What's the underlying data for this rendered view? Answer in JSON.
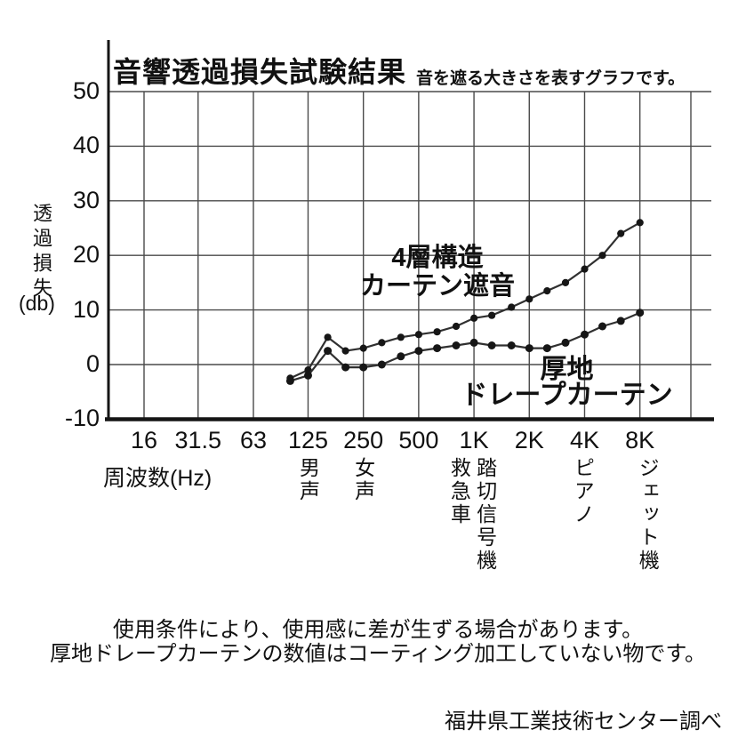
{
  "chart": {
    "title": "音響透過損失試験結果",
    "subtitle": "音を遮る大きさを表すグラフです。",
    "y_axis": {
      "label_vertical": "透過損失",
      "label_unit": "(db)"
    },
    "x_axis": {
      "label": "周波数(Hz)"
    },
    "series_labels": {
      "four_layer": [
        "4層構造",
        "カーテン遮音"
      ],
      "drape": [
        "厚地",
        "ドレープカーテン"
      ]
    },
    "sound_annotations": [
      {
        "label": "男声",
        "freq_hz": 125
      },
      {
        "label": "女声",
        "freq_hz": 250
      },
      {
        "label": "救急車",
        "freq_hz": 830
      },
      {
        "label": "踏切信号機",
        "freq_hz": 1150
      },
      {
        "label": "ピアノ",
        "freq_hz": 3900
      },
      {
        "label": "ジェット機",
        "freq_hz": 8800
      }
    ],
    "notes": [
      "使用条件により、使用感に差が生ずる場合があります。",
      "厚地ドレープカーテンの数値はコーティング加工していない物です。"
    ],
    "attribution": "福井県工業技術センター調べ",
    "colors": {
      "ink": "#151515",
      "grid": "#4a4a4a",
      "line": "#303030",
      "marker": "#161616"
    }
  },
  "chart_data": {
    "type": "line",
    "x_scale": "log2 frequency (Hz), one-third octave bands",
    "xlabel": "周波数(Hz)",
    "ylabel": "透過損失(db)",
    "ylim": [
      -10,
      50
    ],
    "grid": true,
    "xticks": [
      "16",
      "31.5",
      "63",
      "125",
      "250",
      "500",
      "1K",
      "2K",
      "4K",
      "8K"
    ],
    "xtick_freqs": [
      16,
      31.5,
      63,
      125,
      250,
      500,
      1000,
      2000,
      4000,
      8000
    ],
    "yticks": [
      50,
      40,
      30,
      20,
      10,
      0,
      -10
    ],
    "categories": [
      100,
      125,
      160,
      200,
      250,
      315,
      400,
      500,
      630,
      800,
      1000,
      1250,
      1600,
      2000,
      2500,
      3150,
      4000,
      5000,
      6300,
      8000
    ],
    "series": [
      {
        "name": "4層構造カーテン遮音",
        "values": [
          -2.5,
          -1,
          5,
          2.5,
          3,
          4,
          5,
          5.5,
          6,
          7,
          8.5,
          9,
          10.5,
          12,
          13.5,
          15,
          17.5,
          20,
          24,
          26
        ]
      },
      {
        "name": "厚地ドレープカーテン",
        "values": [
          -3,
          -2,
          2.5,
          -0.5,
          -0.5,
          0,
          1.5,
          2.5,
          3,
          3.5,
          4,
          3.5,
          3.5,
          3,
          3,
          4,
          5.5,
          7,
          8,
          9.5
        ]
      }
    ]
  }
}
